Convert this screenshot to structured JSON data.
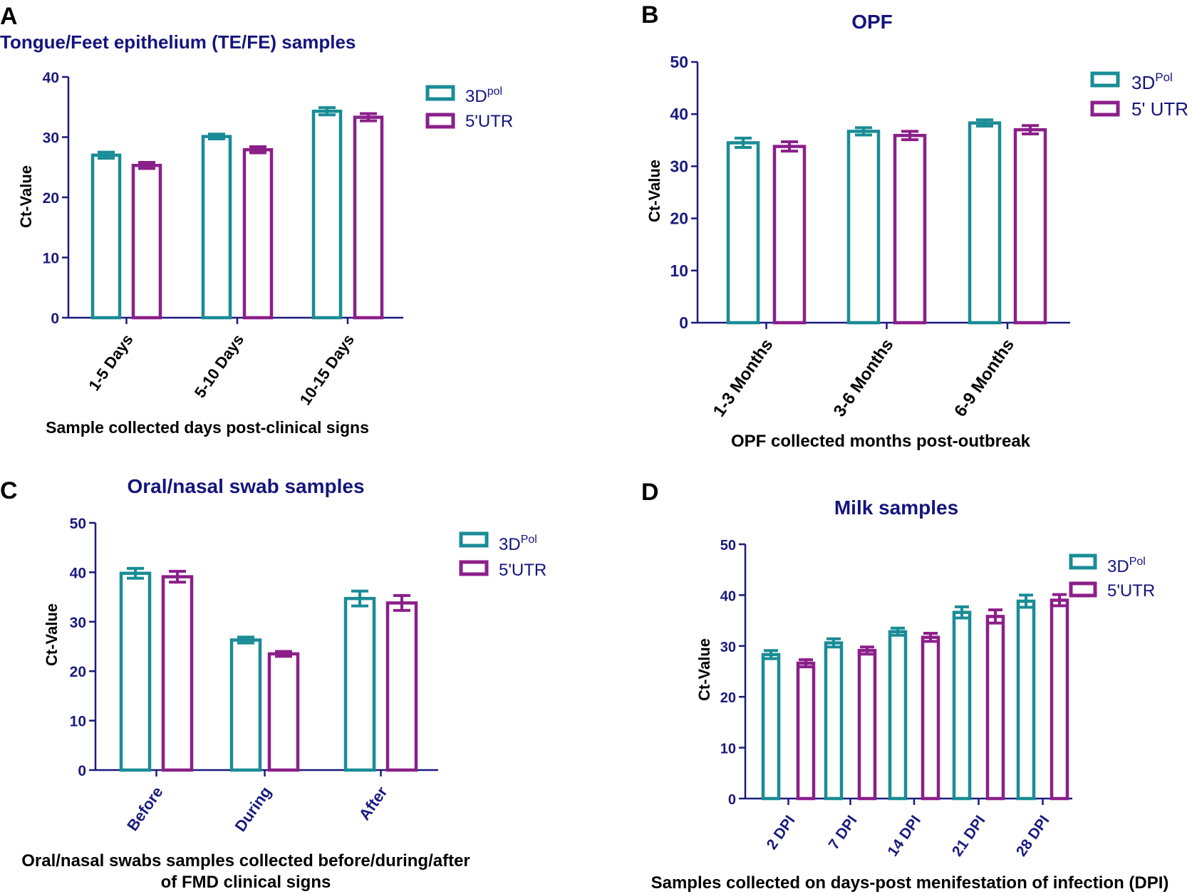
{
  "colors": {
    "series1": "#1a8c96",
    "series2": "#8b1f8a",
    "axis": "#1a1a7e",
    "title": "#14147e",
    "text": "#000000"
  },
  "chart_data": [
    {
      "panel": "A",
      "type": "bar",
      "title": "Tongue/Feet epithelium (TE/FE) samples",
      "xlabel": "Sample collected days post-clinical signs",
      "ylabel": "Ct-Value",
      "ylim": [
        0,
        40
      ],
      "yticks": [
        "0",
        "10",
        "20",
        "30",
        "40"
      ],
      "categories": [
        "1-5 Days",
        "5-10 Days",
        "10-15 Days"
      ],
      "legend": {
        "s1_base": "3D",
        "s1_sup": "pol",
        "s2": "5'UTR"
      },
      "series": [
        {
          "name": "3D pol",
          "values": [
            27.0,
            30.1,
            34.3
          ],
          "errors": [
            0.5,
            0.4,
            0.6
          ]
        },
        {
          "name": "5'UTR",
          "values": [
            25.3,
            27.9,
            33.3
          ],
          "errors": [
            0.5,
            0.5,
            0.6
          ]
        }
      ]
    },
    {
      "panel": "B",
      "type": "bar",
      "title": "OPF",
      "xlabel": "OPF collected months post-outbreak",
      "ylabel": "Ct-Value",
      "ylim": [
        0,
        50
      ],
      "yticks": [
        "0",
        "10",
        "20",
        "30",
        "40",
        "50"
      ],
      "categories": [
        "1-3 Months",
        "3-6 Months",
        "6-9 Months"
      ],
      "legend": {
        "s1_base": "3D",
        "s1_sup": "Pol",
        "s2": "5' UTR"
      },
      "series": [
        {
          "name": "3D Pol",
          "values": [
            34.5,
            36.7,
            38.3
          ],
          "errors": [
            0.9,
            0.7,
            0.6
          ]
        },
        {
          "name": "5' UTR",
          "values": [
            33.8,
            35.9,
            37.0
          ],
          "errors": [
            0.9,
            0.8,
            0.8
          ]
        }
      ]
    },
    {
      "panel": "C",
      "type": "bar",
      "title": "Oral/nasal swab samples",
      "xlabel": "Oral/nasal swabs samples collected before/during/after",
      "xlabel2": "of FMD clinical signs",
      "ylabel": "Ct-Value",
      "ylim": [
        0,
        50
      ],
      "yticks": [
        "0",
        "10",
        "20",
        "30",
        "40",
        "50"
      ],
      "categories": [
        "Before",
        "During",
        "After"
      ],
      "legend": {
        "s1_base": "3D",
        "s1_sup": "Pol",
        "s2": "5'UTR"
      },
      "series": [
        {
          "name": "3D Pol",
          "values": [
            39.8,
            26.3,
            34.7
          ],
          "errors": [
            1.0,
            0.6,
            1.5
          ]
        },
        {
          "name": "5'UTR",
          "values": [
            39.1,
            23.5,
            33.8
          ],
          "errors": [
            1.1,
            0.5,
            1.5
          ]
        }
      ]
    },
    {
      "panel": "D",
      "type": "bar",
      "title": "Milk samples",
      "xlabel": "Samples collected on days-post menifestation of infection (DPI)",
      "ylabel": "Ct-Value",
      "ylim": [
        0,
        50
      ],
      "yticks": [
        "0",
        "10",
        "20",
        "30",
        "40",
        "50"
      ],
      "categories": [
        "2 DPI",
        "7 DPI",
        "14 DPI",
        "21 DPI",
        "28 DPI"
      ],
      "legend": {
        "s1_base": "3D",
        "s1_sup": "Pol",
        "s2": "5'UTR"
      },
      "series": [
        {
          "name": "3D Pol",
          "values": [
            28.3,
            30.6,
            32.8,
            36.6,
            38.8
          ],
          "errors": [
            0.8,
            0.8,
            0.7,
            1.1,
            1.2
          ]
        },
        {
          "name": "5'UTR",
          "values": [
            26.6,
            29.1,
            31.7,
            35.8,
            39.0
          ],
          "errors": [
            0.7,
            0.7,
            0.8,
            1.3,
            1.1
          ]
        }
      ]
    }
  ]
}
